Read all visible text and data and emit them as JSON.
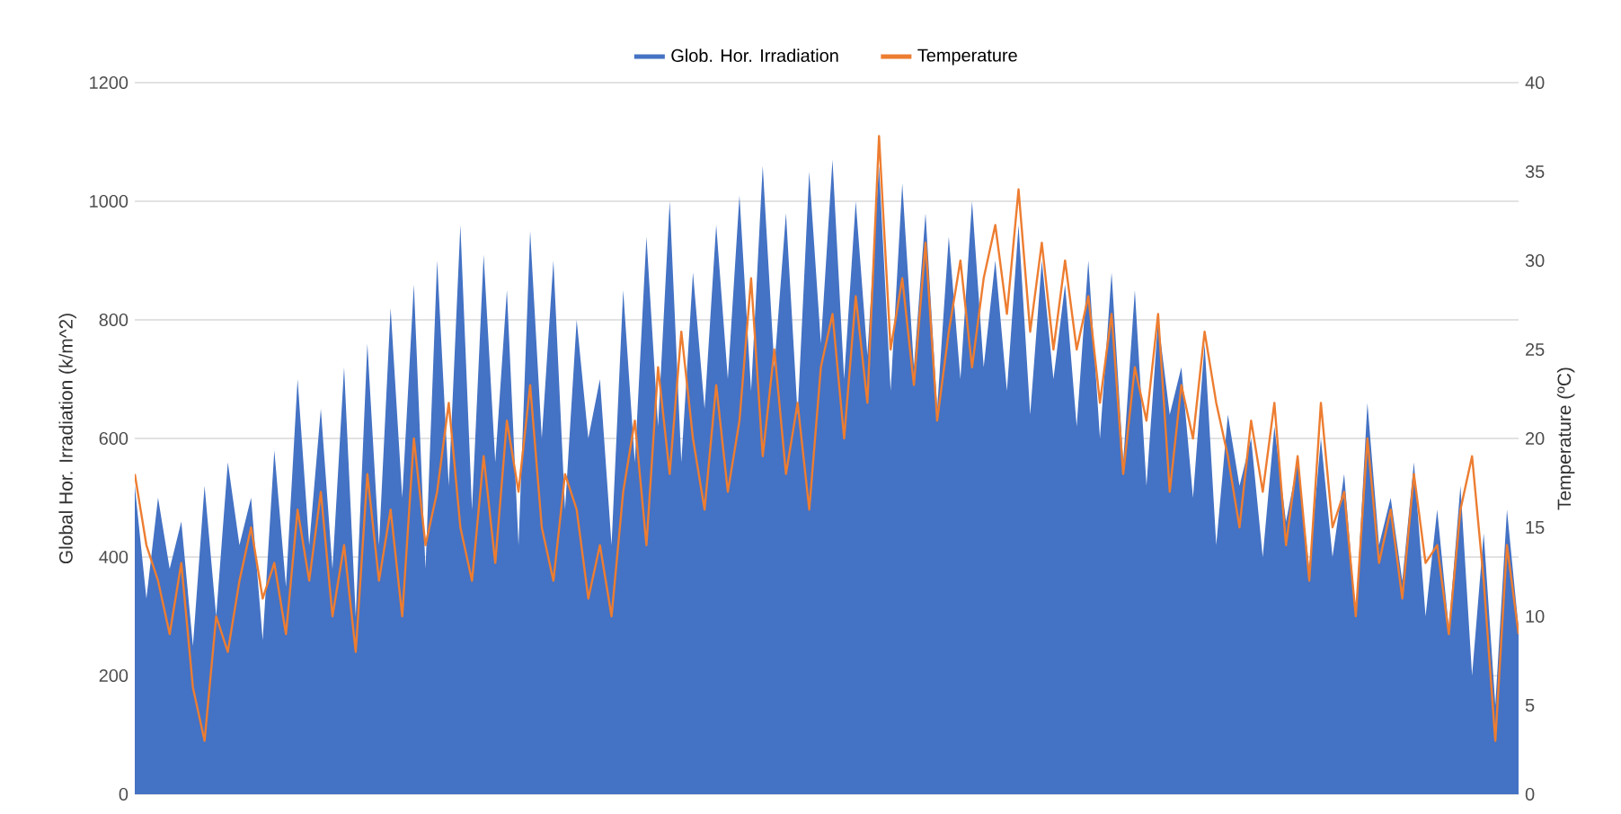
{
  "chart_data": {
    "type": "area",
    "ylabel": "Global Hor. Irradiation (k/m^2)",
    "y2label": "Temperature (ºC)",
    "categories": [
      null,
      null,
      null,
      null,
      null,
      null,
      null,
      null,
      null,
      null,
      null,
      null,
      null,
      null,
      null,
      null,
      null,
      null,
      null,
      null,
      null,
      null,
      null,
      null,
      null,
      null,
      null,
      null,
      null,
      null,
      null,
      null,
      null,
      null,
      null,
      null,
      null,
      null,
      null,
      null,
      null,
      null,
      null,
      null,
      null,
      null,
      null,
      null,
      null,
      null,
      null,
      null,
      null,
      null,
      null,
      null,
      null,
      null,
      null,
      null,
      null,
      null,
      null,
      null,
      null,
      null,
      null,
      null,
      null,
      null,
      null,
      null,
      null,
      null,
      null,
      null,
      null,
      null,
      null,
      null,
      null,
      null,
      null,
      null,
      null,
      null,
      null,
      null,
      null,
      null,
      null,
      null,
      null,
      null,
      null,
      null,
      null,
      null,
      null,
      null,
      null,
      null,
      null,
      null,
      null,
      null,
      null,
      null,
      null,
      null,
      null,
      null,
      null,
      null,
      null,
      null,
      null,
      null,
      null,
      null
    ],
    "series": [
      {
        "name": "Glob. Hor. Irradiation",
        "color": "#4472c4",
        "values": [
          520,
          330,
          500,
          380,
          460,
          250,
          520,
          300,
          560,
          420,
          500,
          260,
          580,
          350,
          700,
          420,
          650,
          380,
          720,
          300,
          760,
          420,
          820,
          500,
          860,
          380,
          900,
          520,
          960,
          480,
          910,
          560,
          850,
          420,
          950,
          600,
          900,
          480,
          800,
          600,
          700,
          420,
          850,
          560,
          940,
          620,
          1000,
          560,
          880,
          650,
          960,
          700,
          1010,
          680,
          1060,
          720,
          980,
          640,
          1050,
          760,
          1070,
          700,
          1000,
          740,
          1060,
          680,
          1030,
          720,
          980,
          650,
          940,
          700,
          1000,
          720,
          900,
          680,
          960,
          640,
          900,
          700,
          860,
          620,
          900,
          600,
          880,
          560,
          850,
          520,
          800,
          640,
          720,
          500,
          760,
          420,
          640,
          520,
          600,
          400,
          620,
          460,
          560,
          380,
          600,
          400,
          540,
          300,
          660,
          420,
          500,
          360,
          560,
          300,
          480,
          280,
          520,
          200,
          440,
          150,
          480,
          280
        ]
      },
      {
        "name": "Temperature",
        "type": "line",
        "axis": "y2",
        "color": "#ed7d31",
        "values": [
          18,
          14,
          12,
          9,
          13,
          6,
          3,
          10,
          8,
          12,
          15,
          11,
          13,
          9,
          16,
          12,
          17,
          10,
          14,
          8,
          18,
          12,
          16,
          10,
          20,
          14,
          17,
          22,
          15,
          12,
          19,
          13,
          21,
          17,
          23,
          15,
          12,
          18,
          16,
          11,
          14,
          10,
          17,
          21,
          14,
          24,
          18,
          26,
          20,
          16,
          23,
          17,
          21,
          29,
          19,
          25,
          18,
          22,
          16,
          24,
          27,
          20,
          28,
          22,
          37,
          25,
          29,
          23,
          31,
          21,
          26,
          30,
          24,
          29,
          32,
          27,
          34,
          26,
          31,
          25,
          30,
          25,
          28,
          22,
          27,
          18,
          24,
          21,
          27,
          17,
          23,
          20,
          26,
          22,
          19,
          15,
          21,
          17,
          22,
          14,
          19,
          12,
          22,
          15,
          17,
          10,
          20,
          13,
          16,
          11,
          18,
          13,
          14,
          9,
          16,
          19,
          12,
          3,
          14,
          9
        ]
      }
    ],
    "ylim": [
      0,
      1200
    ],
    "yticks": [
      0,
      200,
      400,
      600,
      800,
      1000,
      1200
    ],
    "y2lim": [
      0,
      40
    ],
    "y2ticks": [
      0,
      5,
      10,
      15,
      20,
      25,
      30,
      35,
      40
    ],
    "grid": "y",
    "legend": "top"
  }
}
